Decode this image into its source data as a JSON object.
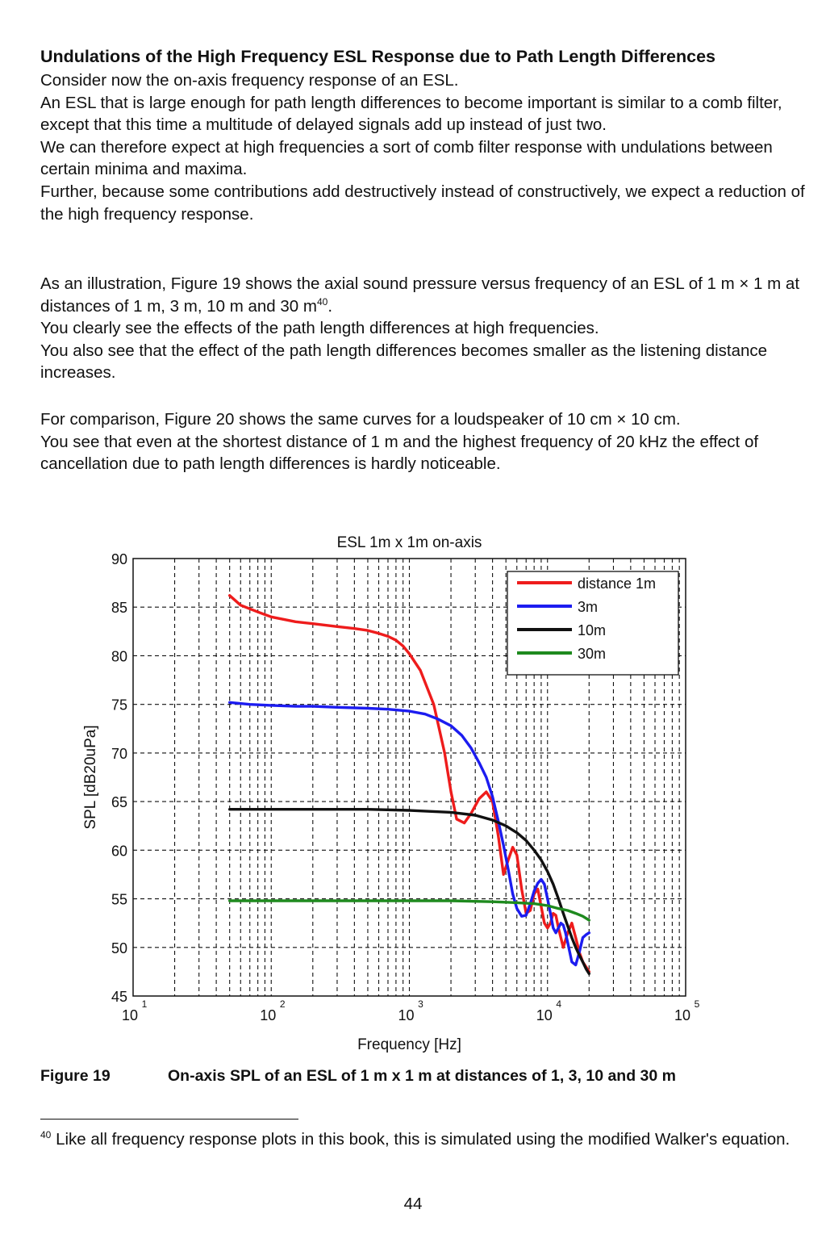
{
  "heading": "Undulations of the High Frequency ESL Response due to Path Length Differences",
  "paragraphs": [
    [
      "Consider now the on-axis frequency response of an ESL.",
      "An ESL that is large enough for path length differences to become important is similar to a comb filter, except that this time a multitude of delayed signals add up instead of just two.",
      "We can therefore expect at high frequencies a sort of comb filter response with undulations between certain minima and maxima.",
      "Further, because some contributions add destructively instead of constructively, we expect a reduction of the high frequency response."
    ],
    [
      "As an illustration, Figure 19 shows the axial sound pressure versus frequency of an ESL of 1 m × 1 m at distances of 1 m, 3 m, 10 m and 30 m",
      "You clearly see the effects of the path length differences at high frequencies.",
      "You also see that the effect of the path length differences becomes smaller as the listening distance increases."
    ],
    [
      "For comparison, Figure 20 shows the same curves for a loudspeaker of 10 cm × 10 cm.",
      "You see that even at the shortest distance of 1 m and the highest frequency of 20 kHz the effect of cancellation due to path length differences is hardly noticeable."
    ]
  ],
  "footnote_ref": "40",
  "chart_data": {
    "type": "line",
    "title": "ESL 1m x 1m on-axis",
    "xlabel": "Frequency [Hz]",
    "ylabel": "SPL [dB20uPa]",
    "x_scale": "log",
    "xlim": [
      10,
      100000
    ],
    "ylim": [
      45,
      90
    ],
    "x_ticks": [
      {
        "base": "10",
        "exp": "1"
      },
      {
        "base": "10",
        "exp": "2"
      },
      {
        "base": "10",
        "exp": "3"
      },
      {
        "base": "10",
        "exp": "4"
      },
      {
        "base": "10",
        "exp": "5"
      }
    ],
    "y_ticks": [
      "45",
      "50",
      "55",
      "60",
      "65",
      "70",
      "75",
      "80",
      "85",
      "90"
    ],
    "grid": true,
    "grid_style": "dashed",
    "legend_position": "top-right",
    "series": [
      {
        "name": "distance 1m",
        "color": "#ee1c1c",
        "x": [
          50,
          60,
          80,
          100,
          150,
          200,
          300,
          400,
          500,
          600,
          700,
          800,
          900,
          1000,
          1200,
          1500,
          1800,
          2000,
          2200,
          2500,
          2800,
          3200,
          3600,
          4000,
          4400,
          4800,
          5200,
          5600,
          6000,
          6500,
          7000,
          7500,
          8000,
          8500,
          9000,
          9500,
          10000,
          10500,
          11000,
          11500,
          12000,
          13000,
          14000,
          15000,
          16000,
          17000,
          18000,
          19000,
          20000
        ],
        "y": [
          86.2,
          85.2,
          84.5,
          84.0,
          83.5,
          83.3,
          83.0,
          82.8,
          82.6,
          82.3,
          82.0,
          81.6,
          81.0,
          80.2,
          78.5,
          75.0,
          70.0,
          66.0,
          63.2,
          62.8,
          63.8,
          65.3,
          66.0,
          65.0,
          61.5,
          57.5,
          59.0,
          60.3,
          59.5,
          56.0,
          53.5,
          53.8,
          55.5,
          56.0,
          54.2,
          52.5,
          52.0,
          52.5,
          53.5,
          53.3,
          52.0,
          50.0,
          51.5,
          52.5,
          51.0,
          49.5,
          48.5,
          48.0,
          47.5
        ]
      },
      {
        "name": "3m",
        "color": "#1c1cf0",
        "x": [
          50,
          70,
          100,
          150,
          200,
          300,
          500,
          700,
          1000,
          1300,
          1600,
          2000,
          2400,
          2800,
          3200,
          3600,
          4000,
          4400,
          4800,
          5200,
          5600,
          6000,
          6500,
          7000,
          7500,
          8000,
          8500,
          9000,
          9500,
          10000,
          10500,
          11000,
          11500,
          12000,
          12500,
          13000,
          13500,
          14000,
          15000,
          16000,
          17000,
          18000,
          19000,
          20000
        ],
        "y": [
          75.2,
          75.0,
          74.9,
          74.8,
          74.8,
          74.7,
          74.6,
          74.5,
          74.3,
          74.0,
          73.5,
          72.8,
          71.8,
          70.5,
          69.0,
          67.5,
          65.5,
          63.0,
          60.5,
          58.0,
          55.5,
          54.0,
          53.2,
          53.3,
          54.5,
          55.8,
          56.6,
          57.0,
          56.5,
          55.0,
          53.5,
          52.0,
          51.5,
          52.0,
          52.5,
          52.3,
          51.5,
          50.5,
          48.5,
          48.2,
          49.5,
          51.0,
          51.3,
          51.5
        ]
      },
      {
        "name": "10m",
        "color": "#111111",
        "x": [
          50,
          100,
          200,
          500,
          1000,
          2000,
          3000,
          4000,
          5000,
          6000,
          7000,
          8000,
          9000,
          10000,
          11000,
          12000,
          13000,
          14000,
          15000,
          16000,
          17000,
          18000,
          19000,
          20000
        ],
        "y": [
          64.2,
          64.2,
          64.2,
          64.2,
          64.1,
          63.9,
          63.6,
          63.1,
          62.5,
          61.8,
          61.0,
          60.0,
          59.0,
          57.8,
          56.5,
          55.0,
          53.5,
          52.2,
          51.0,
          50.0,
          49.2,
          48.5,
          47.8,
          47.3
        ]
      },
      {
        "name": "30m",
        "color": "#1e8a1e",
        "x": [
          50,
          100,
          200,
          500,
          1000,
          2000,
          4000,
          6000,
          8000,
          10000,
          12000,
          14000,
          16000,
          18000,
          20000
        ],
        "y": [
          54.8,
          54.8,
          54.8,
          54.8,
          54.8,
          54.8,
          54.7,
          54.6,
          54.5,
          54.3,
          54.0,
          53.8,
          53.5,
          53.2,
          52.8
        ]
      }
    ]
  },
  "caption": {
    "label": "Figure 19",
    "text": "On-axis SPL of an ESL of 1 m x 1 m at distances of 1, 3, 10 and 30 m"
  },
  "footnote": {
    "mark": "40",
    "text": "Like all frequency response plots in this book, this is simulated using the modified Walker's equation."
  },
  "page_number": "44"
}
